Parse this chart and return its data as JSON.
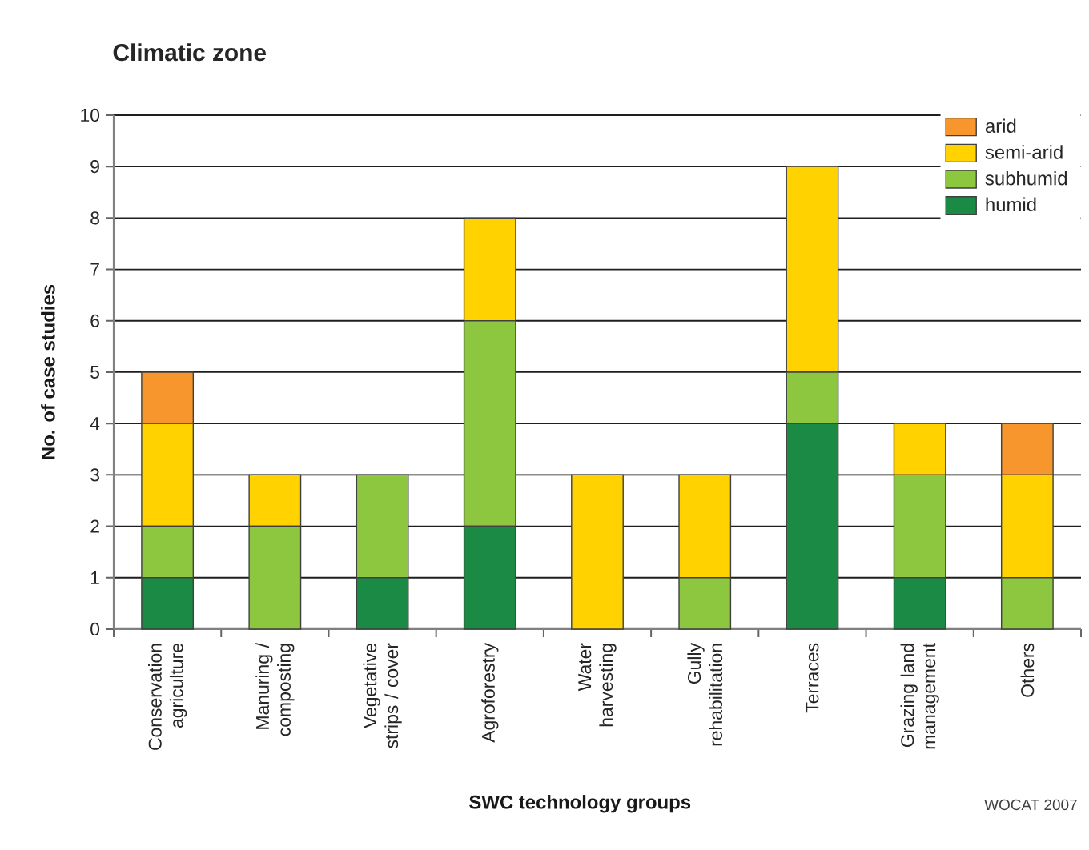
{
  "chart_data": {
    "type": "bar",
    "stacked": true,
    "title": "Climatic zone",
    "xlabel": "SWC technology groups",
    "ylabel": "No. of case studies",
    "categories": [
      "Conservation agriculture",
      "Manuring / composting",
      "Vegetative strips / cover",
      "Agroforestry",
      "Water harvesting",
      "Gully rehabilitation",
      "Terraces",
      "Grazing land management",
      "Others"
    ],
    "series": [
      {
        "name": "humid",
        "color": "#1b8a45",
        "values": [
          1,
          0,
          1,
          2,
          0,
          0,
          4,
          1,
          0
        ]
      },
      {
        "name": "subhumid",
        "color": "#8dc63f",
        "values": [
          1,
          2,
          2,
          4,
          0,
          1,
          1,
          2,
          1
        ]
      },
      {
        "name": "semi-arid",
        "color": "#ffd200",
        "values": [
          2,
          1,
          0,
          2,
          3,
          2,
          4,
          1,
          2
        ]
      },
      {
        "name": "arid",
        "color": "#f6962d",
        "values": [
          1,
          0,
          0,
          0,
          0,
          0,
          0,
          0,
          1
        ]
      }
    ],
    "ylim": [
      0,
      10
    ],
    "yticks": [
      0,
      1,
      2,
      3,
      4,
      5,
      6,
      7,
      8,
      9,
      10
    ],
    "grid": "y",
    "legend": "top right",
    "annotations": [
      "WOCAT 2007"
    ]
  }
}
